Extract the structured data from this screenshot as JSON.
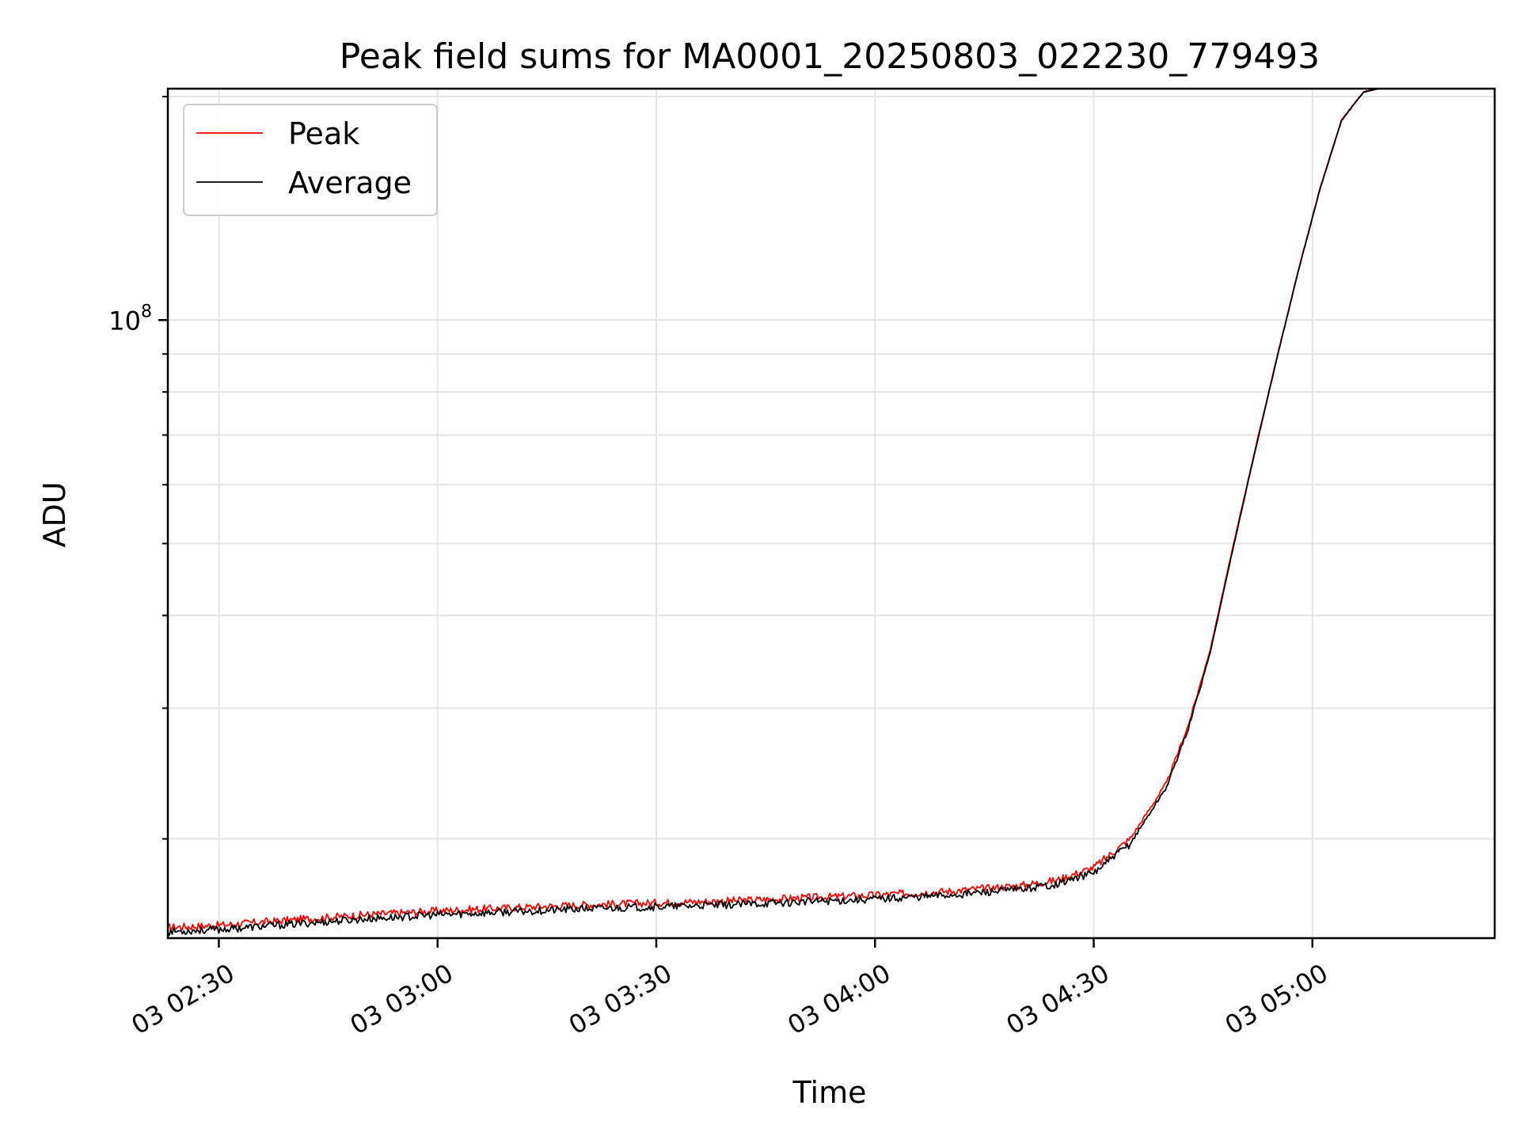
{
  "chart_data": {
    "type": "line",
    "title": "Peak field sums for MA0001_20250803_022230_779493",
    "xlabel": "Time",
    "ylabel": "ADU",
    "y_scale": "log",
    "grid": true,
    "legend_position": "top-left",
    "xlim": [
      "02:23",
      "05:25"
    ],
    "ylim": [
      14700000,
      205000000
    ],
    "x_ticks": [
      {
        "time": "02:30",
        "label": "03 02:30"
      },
      {
        "time": "03:00",
        "label": "03 03:00"
      },
      {
        "time": "03:30",
        "label": "03 03:30"
      },
      {
        "time": "04:00",
        "label": "03 04:00"
      },
      {
        "time": "04:30",
        "label": "03 04:30"
      },
      {
        "time": "05:00",
        "label": "03 05:00"
      }
    ],
    "y_major_ticks": [
      {
        "value": 100000000,
        "base": "10",
        "exponent": "8"
      }
    ],
    "y_minor_ticks": [
      20000000,
      30000000,
      40000000,
      50000000,
      60000000,
      70000000,
      80000000,
      90000000,
      200000000
    ],
    "series": [
      {
        "name": "Peak",
        "color": "#ff0000",
        "points": [
          [
            "02:23",
            15200000
          ],
          [
            "02:30",
            15300000
          ],
          [
            "02:40",
            15550000
          ],
          [
            "02:50",
            15800000
          ],
          [
            "03:00",
            16000000
          ],
          [
            "03:10",
            16150000
          ],
          [
            "03:20",
            16300000
          ],
          [
            "03:30",
            16400000
          ],
          [
            "03:40",
            16500000
          ],
          [
            "03:50",
            16650000
          ],
          [
            "04:00",
            16800000
          ],
          [
            "04:10",
            17000000
          ],
          [
            "04:20",
            17300000
          ],
          [
            "04:25",
            17600000
          ],
          [
            "04:30",
            18300000
          ],
          [
            "04:35",
            20000000
          ],
          [
            "04:40",
            23800000
          ],
          [
            "04:43",
            28500000
          ],
          [
            "04:46",
            36000000
          ],
          [
            "04:49",
            49000000
          ],
          [
            "04:52",
            66000000
          ],
          [
            "04:55",
            88000000
          ],
          [
            "04:58",
            116000000
          ],
          [
            "05:01",
            150000000
          ],
          [
            "05:04",
            186000000
          ],
          [
            "05:07",
            203000000
          ],
          [
            "05:09",
            205000000
          ]
        ]
      },
      {
        "name": "Average",
        "color": "#000000",
        "points": [
          [
            "02:23",
            15000000
          ],
          [
            "02:30",
            15100000
          ],
          [
            "02:40",
            15350000
          ],
          [
            "02:50",
            15600000
          ],
          [
            "03:00",
            15800000
          ],
          [
            "03:10",
            15950000
          ],
          [
            "03:20",
            16100000
          ],
          [
            "03:30",
            16200000
          ],
          [
            "03:40",
            16300000
          ],
          [
            "03:50",
            16450000
          ],
          [
            "04:00",
            16600000
          ],
          [
            "04:10",
            16800000
          ],
          [
            "04:20",
            17100000
          ],
          [
            "04:25",
            17400000
          ],
          [
            "04:30",
            18000000
          ],
          [
            "04:35",
            19700000
          ],
          [
            "04:40",
            23500000
          ],
          [
            "04:43",
            28200000
          ],
          [
            "04:46",
            35700000
          ],
          [
            "04:49",
            48700000
          ],
          [
            "04:52",
            65700000
          ],
          [
            "04:55",
            87700000
          ],
          [
            "04:58",
            115700000
          ],
          [
            "05:01",
            149700000
          ],
          [
            "05:04",
            185700000
          ],
          [
            "05:07",
            202800000
          ],
          [
            "05:09",
            205000000
          ]
        ]
      }
    ]
  }
}
